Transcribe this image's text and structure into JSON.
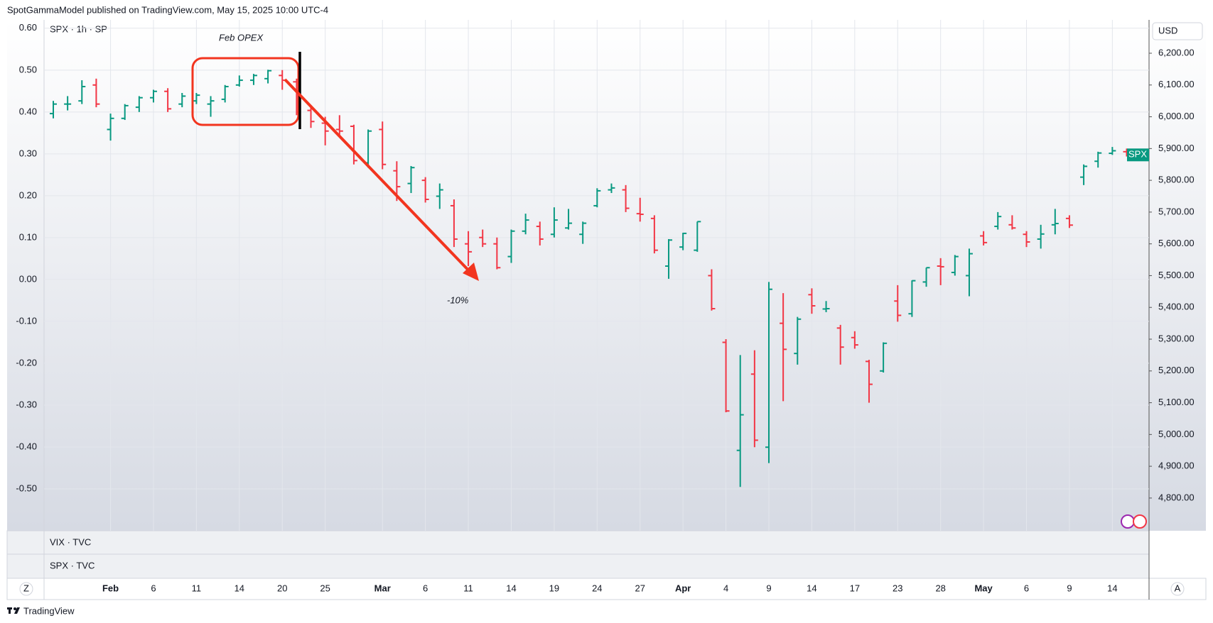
{
  "header": "SpotGammaModel published on TradingView.com, May 15, 2025 10:00 UTC-4",
  "footer": "TradingView",
  "chart_data": {
    "type": "ohlc",
    "symbol": "SPX · 1h · SP",
    "currency": "USD",
    "price_label": "SPX",
    "categories": [
      null,
      null,
      null,
      null,
      "Feb",
      null,
      null,
      "6",
      null,
      null,
      "11",
      null,
      null,
      "14",
      null,
      null,
      "20",
      null,
      null,
      "25",
      null,
      null,
      null,
      "Mar",
      null,
      null,
      "6",
      null,
      null,
      "11",
      null,
      null,
      "14",
      null,
      null,
      "19",
      null,
      null,
      "24",
      null,
      null,
      "27",
      null,
      null,
      "Apr",
      null,
      null,
      "4",
      null,
      null,
      "9",
      null,
      null,
      "14",
      null,
      null,
      "17",
      null,
      null,
      "23",
      null,
      null,
      "28",
      null,
      null,
      "May",
      null,
      null,
      "6",
      null,
      null,
      "9",
      null,
      null,
      "14",
      null
    ],
    "open": [
      6010,
      6040,
      6050,
      6100,
      5960,
      5995,
      6030,
      6060,
      6080,
      6040,
      6050,
      6040,
      6055,
      6100,
      6115,
      6120,
      6130,
      6110,
      6020,
      5980,
      5960,
      5970,
      5855,
      5960,
      5830,
      5790,
      5800,
      5750,
      5720,
      5600,
      5620,
      5600,
      5560,
      5640,
      5655,
      5630,
      5650,
      5630,
      5720,
      5770,
      5770,
      5695,
      5680,
      5530,
      5590,
      5580,
      5500,
      5290,
      4950,
      5190,
      4960,
      5350,
      5255,
      5440,
      5395,
      5335,
      5305,
      5230,
      5200,
      5420,
      5380,
      5480,
      5530,
      5510,
      5500,
      5625,
      5655,
      5660,
      5630,
      5615,
      5660,
      5680,
      5810,
      5860,
      5885,
      5890
    ],
    "high": [
      6050,
      6065,
      6115,
      6120,
      6010,
      6040,
      6065,
      6085,
      6090,
      6075,
      6075,
      6065,
      6100,
      6130,
      6135,
      6148,
      6147,
      6120,
      6030,
      6000,
      6005,
      5975,
      5960,
      5985,
      5860,
      5845,
      5810,
      5790,
      5740,
      5640,
      5645,
      5620,
      5645,
      5695,
      5670,
      5715,
      5710,
      5670,
      5775,
      5790,
      5785,
      5745,
      5690,
      5615,
      5635,
      5670,
      5520,
      5300,
      5250,
      5265,
      5480,
      5445,
      5370,
      5460,
      5420,
      5345,
      5325,
      5235,
      5290,
      5470,
      5485,
      5525,
      5555,
      5565,
      5585,
      5640,
      5700,
      5690,
      5640,
      5660,
      5710,
      5690,
      5850,
      5890,
      5905,
      5900
    ],
    "low": [
      5995,
      6020,
      6040,
      6030,
      5925,
      5990,
      6015,
      6045,
      6015,
      6030,
      6040,
      6000,
      6045,
      6095,
      6100,
      6105,
      6085,
      6005,
      5965,
      5910,
      5940,
      5850,
      5840,
      5835,
      5735,
      5760,
      5730,
      5710,
      5590,
      5530,
      5590,
      5520,
      5540,
      5630,
      5595,
      5620,
      5645,
      5600,
      5715,
      5760,
      5700,
      5670,
      5570,
      5490,
      5580,
      5575,
      5390,
      5070,
      4835,
      4960,
      4910,
      5105,
      5220,
      5380,
      5385,
      5220,
      5270,
      5100,
      5195,
      5355,
      5370,
      5465,
      5470,
      5500,
      5435,
      5595,
      5645,
      5645,
      5590,
      5585,
      5630,
      5650,
      5785,
      5840,
      5880,
      5875
    ],
    "close": [
      6040,
      6040,
      6095,
      6040,
      5995,
      6035,
      6060,
      6080,
      6025,
      6065,
      6068,
      6050,
      6095,
      6115,
      6130,
      6145,
      6115,
      6015,
      5985,
      5955,
      5955,
      5862,
      5955,
      5850,
      5780,
      5840,
      5740,
      5770,
      5615,
      5575,
      5600,
      5525,
      5640,
      5675,
      5615,
      5675,
      5665,
      5665,
      5767,
      5776,
      5712,
      5693,
      5580,
      5612,
      5633,
      5670,
      5396,
      5074,
      5062,
      4982,
      5457,
      5268,
      5363,
      5405,
      5396,
      5275,
      5282,
      5158,
      5287,
      5375,
      5484,
      5525,
      5528,
      5560,
      5569,
      5604,
      5686,
      5650,
      5606,
      5631,
      5664,
      5659,
      5844,
      5886,
      5893,
      5880
    ],
    "up_color": "#089981",
    "down_color": "#f23645",
    "ylim": [
      -0.6,
      0.62
    ],
    "yticks": [
      {
        "value": 0.6,
        "label": "0.60"
      },
      {
        "value": 0.5,
        "label": "0.50"
      },
      {
        "value": 0.4,
        "label": "0.40"
      },
      {
        "value": 0.3,
        "label": "0.30"
      },
      {
        "value": 0.2,
        "label": "0.20"
      },
      {
        "value": 0.1,
        "label": "0.10"
      },
      {
        "value": 0,
        "label": "0.00"
      },
      {
        "value": -0.1,
        "label": "-0.10"
      },
      {
        "value": -0.2,
        "label": "-0.20"
      },
      {
        "value": -0.3,
        "label": "-0.30"
      },
      {
        "value": -0.4,
        "label": "-0.40"
      },
      {
        "value": -0.5,
        "label": "-0.50"
      }
    ],
    "y2lim": [
      4697,
      6305
    ],
    "y2ticks": [
      {
        "value": 6200,
        "label": "6,200.00"
      },
      {
        "value": 6100,
        "label": "6,100.00"
      },
      {
        "value": 6000,
        "label": "6,000.00"
      },
      {
        "value": 5900,
        "label": "5,900.00"
      },
      {
        "value": 5800,
        "label": "5,800.00"
      },
      {
        "value": 5700,
        "label": "5,700.00"
      },
      {
        "value": 5600,
        "label": "5,600.00"
      },
      {
        "value": 5500,
        "label": "5,500.00"
      },
      {
        "value": 5400,
        "label": "5,400.00"
      },
      {
        "value": 5300,
        "label": "5,300.00"
      },
      {
        "value": 5200,
        "label": "5,200.00"
      },
      {
        "value": 5100,
        "label": "5,100.00"
      },
      {
        "value": 5000,
        "label": "5,000.00"
      },
      {
        "value": 4900,
        "label": "4,900.00"
      },
      {
        "value": 4800,
        "label": "4,800.00"
      }
    ],
    "grid": true,
    "annotations": [
      {
        "text": "Feb OPEX"
      },
      {
        "text": "-10%"
      }
    ],
    "panes": [
      "VIX · TVC",
      "SPX · TVC"
    ],
    "buttons": [
      "Z",
      "A"
    ]
  }
}
